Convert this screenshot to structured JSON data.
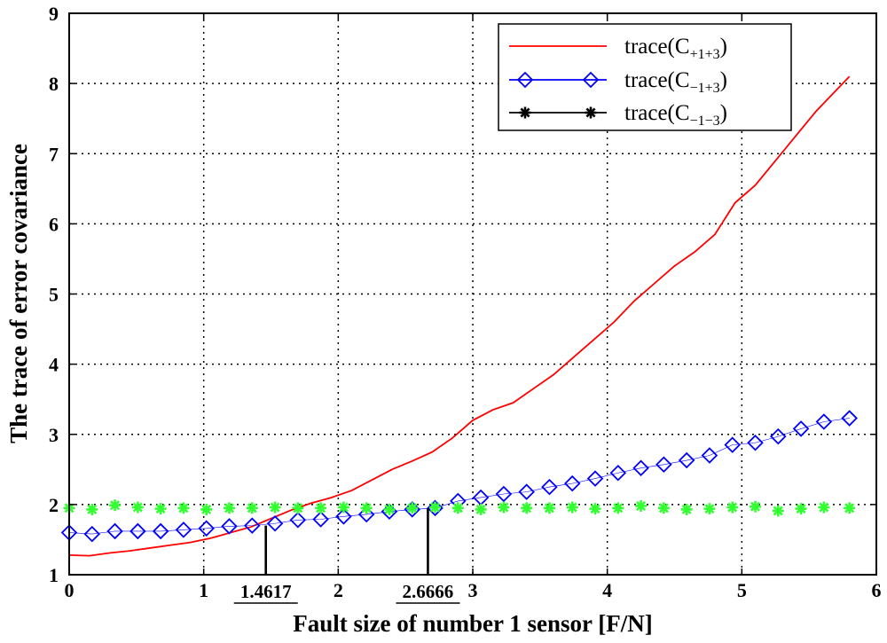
{
  "chart_data": {
    "type": "line",
    "title": "",
    "xlabel": "Fault size of number 1 sensor [F/N]",
    "ylabel": "The trace of error covariance",
    "xlim": [
      0,
      6
    ],
    "ylim": [
      1,
      9
    ],
    "xticks": [
      0,
      1,
      2,
      3,
      4,
      5,
      6
    ],
    "yticks": [
      1,
      2,
      3,
      4,
      5,
      6,
      7,
      8,
      9
    ],
    "grid": true,
    "legend_position": "top-right",
    "series": [
      {
        "name": "trace(C+1+3)",
        "legend": {
          "base": "trace(C",
          "sub": "+1+3",
          "close": ")"
        },
        "color": "#ff0000",
        "style": "line",
        "x": [
          0,
          0.15,
          0.3,
          0.45,
          0.6,
          0.75,
          0.9,
          1.05,
          1.2,
          1.35,
          1.5,
          1.65,
          1.8,
          1.95,
          2.1,
          2.25,
          2.4,
          2.55,
          2.7,
          2.85,
          3.0,
          3.15,
          3.3,
          3.45,
          3.6,
          3.75,
          3.9,
          4.05,
          4.2,
          4.35,
          4.5,
          4.65,
          4.8,
          4.95,
          5.1,
          5.25,
          5.4,
          5.55,
          5.7,
          5.8
        ],
        "y": [
          1.28,
          1.27,
          1.31,
          1.34,
          1.38,
          1.42,
          1.46,
          1.52,
          1.6,
          1.68,
          1.8,
          1.92,
          2.02,
          2.1,
          2.2,
          2.35,
          2.5,
          2.62,
          2.75,
          2.95,
          3.2,
          3.35,
          3.45,
          3.65,
          3.85,
          4.1,
          4.35,
          4.6,
          4.9,
          5.15,
          5.4,
          5.6,
          5.85,
          6.3,
          6.55,
          6.9,
          7.25,
          7.6,
          7.9,
          8.1
        ]
      },
      {
        "name": "trace(C-1+3)",
        "legend": {
          "base": "trace(C",
          "sub": "−1+3",
          "close": ")"
        },
        "color": "#0000ff",
        "style": "diamond",
        "x": [
          0,
          0.17,
          0.34,
          0.51,
          0.68,
          0.85,
          1.02,
          1.19,
          1.36,
          1.53,
          1.7,
          1.87,
          2.04,
          2.21,
          2.38,
          2.55,
          2.72,
          2.89,
          3.06,
          3.23,
          3.4,
          3.57,
          3.74,
          3.91,
          4.08,
          4.25,
          4.42,
          4.59,
          4.76,
          4.93,
          5.1,
          5.27,
          5.44,
          5.61,
          5.8
        ],
        "y": [
          1.6,
          1.58,
          1.62,
          1.62,
          1.62,
          1.64,
          1.66,
          1.69,
          1.7,
          1.73,
          1.78,
          1.79,
          1.83,
          1.86,
          1.9,
          1.93,
          1.95,
          2.05,
          2.1,
          2.15,
          2.18,
          2.25,
          2.3,
          2.37,
          2.45,
          2.52,
          2.57,
          2.63,
          2.7,
          2.85,
          2.88,
          2.97,
          3.08,
          3.18,
          3.23
        ]
      },
      {
        "name": "trace(C-1-3)",
        "legend": {
          "base": "trace(C",
          "sub": "−1−3",
          "close": ")"
        },
        "color": "#33ff33",
        "legend_color": "#000000",
        "style": "star",
        "x": [
          0,
          0.17,
          0.34,
          0.51,
          0.68,
          0.85,
          1.02,
          1.19,
          1.36,
          1.53,
          1.7,
          1.87,
          2.04,
          2.21,
          2.38,
          2.55,
          2.72,
          2.89,
          3.06,
          3.23,
          3.4,
          3.57,
          3.74,
          3.91,
          4.08,
          4.25,
          4.42,
          4.59,
          4.76,
          4.93,
          5.1,
          5.27,
          5.44,
          5.61,
          5.8
        ],
        "y": [
          1.95,
          1.93,
          1.99,
          1.96,
          1.94,
          1.95,
          1.93,
          1.95,
          1.95,
          1.96,
          1.95,
          1.95,
          1.96,
          1.95,
          1.93,
          1.95,
          1.96,
          1.95,
          1.93,
          1.96,
          1.95,
          1.95,
          1.96,
          1.94,
          1.95,
          1.98,
          1.95,
          1.93,
          1.94,
          1.96,
          1.97,
          1.91,
          1.94,
          1.96,
          1.95
        ]
      }
    ],
    "annotations": [
      {
        "label": "1.4617",
        "x": 1.4617,
        "y": 1.7
      },
      {
        "label": "2.6666",
        "x": 2.6666,
        "y": 1.95
      }
    ]
  }
}
